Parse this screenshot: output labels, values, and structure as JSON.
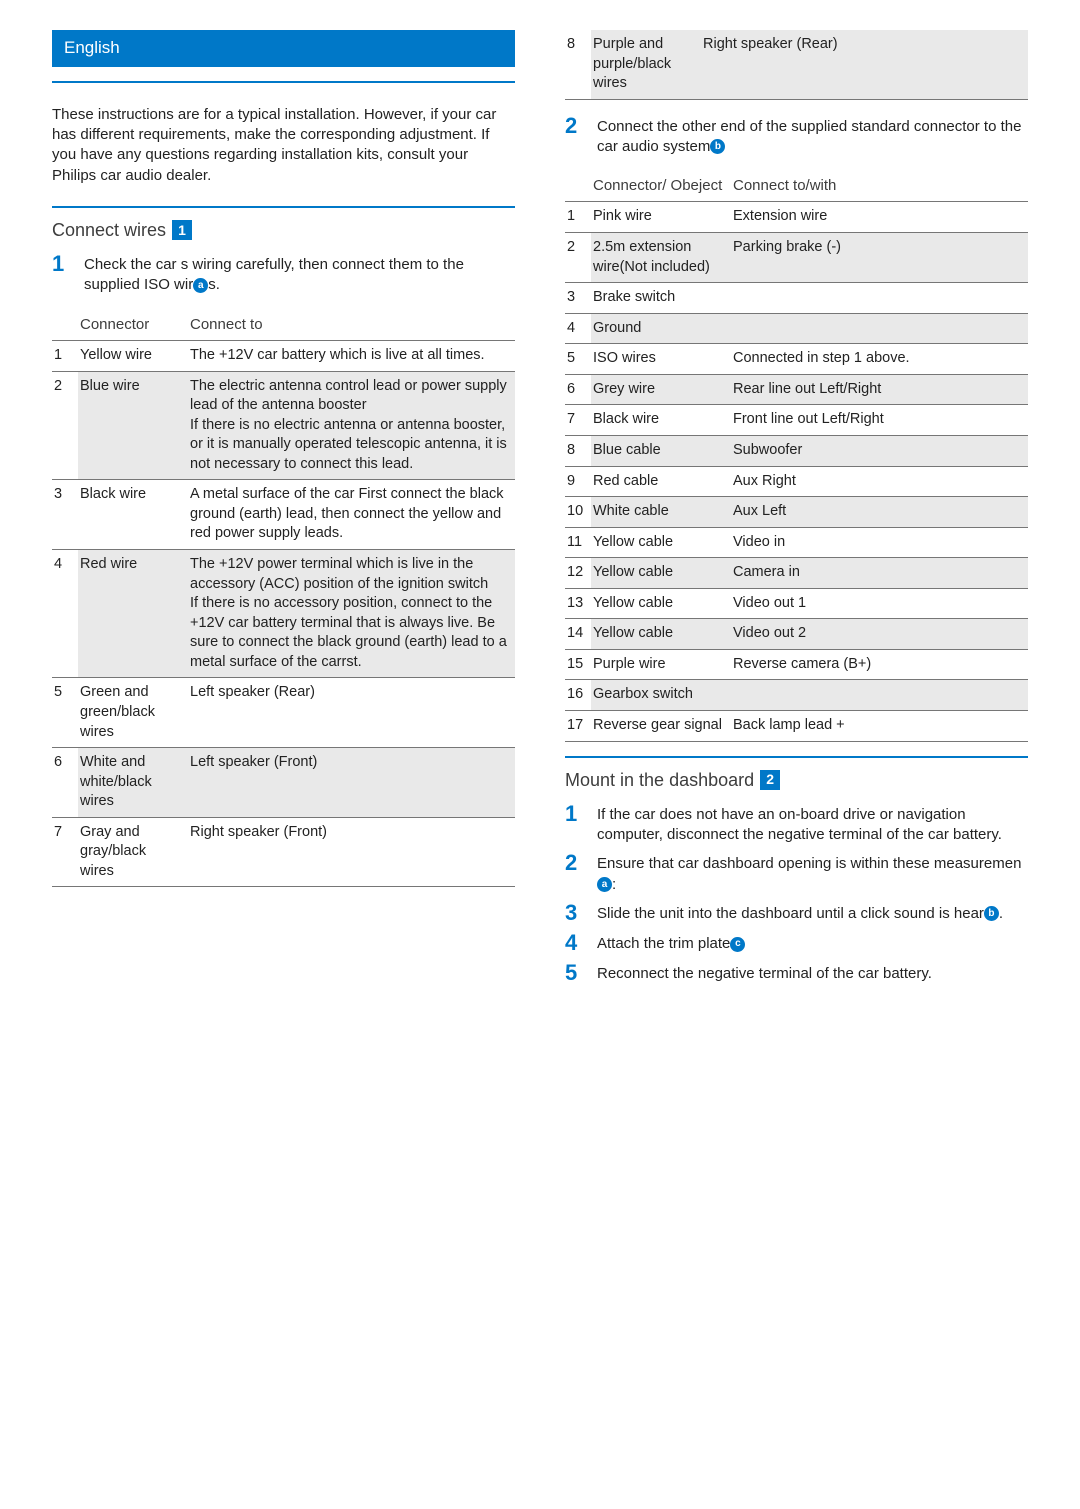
{
  "lang": "English",
  "intro": "These instructions are for a typical installation. However, if your car has different requirements, make the corresponding adjustment. If you have any questions regarding installation kits, consult your Philips car audio dealer.",
  "section1": {
    "title": "Connect wires",
    "badge": "1",
    "step1": {
      "num": "1",
      "textA": "Check the car s wiring carefully, then connect them to the supplied ISO wir",
      "circ": "a",
      "textB": "s."
    },
    "table1": {
      "h1": "Connector",
      "h2": "Connect to",
      "rows": [
        {
          "i": "1",
          "c": "Yellow wire",
          "t": "The +12V car battery which is live at all times."
        },
        {
          "i": "2",
          "c": "Blue wire",
          "t": "The electric antenna control lead or power supply lead of the antenna booster\nIf there is no electric antenna or antenna booster, or it is manually operated telescopic antenna, it is not necessary to connect this lead."
        },
        {
          "i": "3",
          "c": "Black wire",
          "t": "A metal surface of the car First connect the black ground (earth) lead, then connect the yellow and red power supply leads."
        },
        {
          "i": "4",
          "c": "Red wire",
          "t": "The +12V power terminal which is live in the accessory (ACC) position of the ignition switch\nIf there is no accessory position, connect to the +12V car battery terminal that is always live. Be sure to connect the black ground (earth) lead to a metal surface of the carrst."
        },
        {
          "i": "5",
          "c": "Green and green/black wires",
          "t": "Left speaker (Rear)"
        },
        {
          "i": "6",
          "c": "White and white/black wires",
          "t": "Left speaker (Front)"
        },
        {
          "i": "7",
          "c": "Gray and gray/black wires",
          "t": "Right speaker (Front)"
        },
        {
          "i": "8",
          "c": "Purple and purple/black wires",
          "t": "Right speaker (Rear)"
        }
      ]
    },
    "step2": {
      "num": "2",
      "textA": "Connect the other end of the supplied standard connector to the car audio system",
      "circ": "b"
    },
    "table2": {
      "h1": "Connector/ Obeject",
      "h2": "Connect to/with",
      "rows": [
        {
          "i": "1",
          "c": "Pink wire",
          "t": "Extension wire"
        },
        {
          "i": "2",
          "c": "2.5m extension wire(Not included)",
          "t": "Parking brake (-)"
        },
        {
          "i": "3",
          "c": "Brake switch",
          "t": ""
        },
        {
          "i": "4",
          "c": "Ground",
          "t": ""
        },
        {
          "i": "5",
          "c": "ISO wires",
          "t": "Connected in step 1 above."
        },
        {
          "i": "6",
          "c": "Grey wire",
          "t": "Rear line out Left/Right"
        },
        {
          "i": "7",
          "c": "Black wire",
          "t": "Front line out Left/Right"
        },
        {
          "i": "8",
          "c": "Blue cable",
          "t": "Subwoofer"
        },
        {
          "i": "9",
          "c": "Red cable",
          "t": "Aux Right"
        },
        {
          "i": "10",
          "c": "White cable",
          "t": "Aux Left"
        },
        {
          "i": "11",
          "c": "Yellow cable",
          "t": "Video in"
        },
        {
          "i": "12",
          "c": "Yellow cable",
          "t": "Camera in"
        },
        {
          "i": "13",
          "c": "Yellow cable",
          "t": "Video out 1"
        },
        {
          "i": "14",
          "c": "Yellow cable",
          "t": "Video out 2"
        },
        {
          "i": "15",
          "c": "Purple wire",
          "t": "Reverse camera (B+)"
        },
        {
          "i": "16",
          "c": "Gearbox switch",
          "t": ""
        },
        {
          "i": "17",
          "c": "Reverse gear signal",
          "t": "Back lamp lead +"
        }
      ]
    }
  },
  "section2": {
    "title": "Mount in the dashboard",
    "badge": "2",
    "steps": [
      {
        "n": "1",
        "a": "If the car does not have an on-board drive or navigation computer, disconnect the negative terminal of the car battery.",
        "c": "",
        "b": ""
      },
      {
        "n": "2",
        "a": "Ensure that car dashboard opening is within these measuremen",
        "c": "a",
        "b": ":"
      },
      {
        "n": "3",
        "a": "Slide the unit into the dashboard until a click sound is hear",
        "c": "b",
        "b": "."
      },
      {
        "n": "4",
        "a": "Attach the trim plate",
        "c": "c",
        "b": ""
      },
      {
        "n": "5",
        "a": "Reconnect the negative terminal of the car battery.",
        "c": "",
        "b": ""
      }
    ]
  },
  "colors": {
    "accent": "#0078c8",
    "rule": "#767676",
    "alt_bg": "#e9e9e9"
  }
}
